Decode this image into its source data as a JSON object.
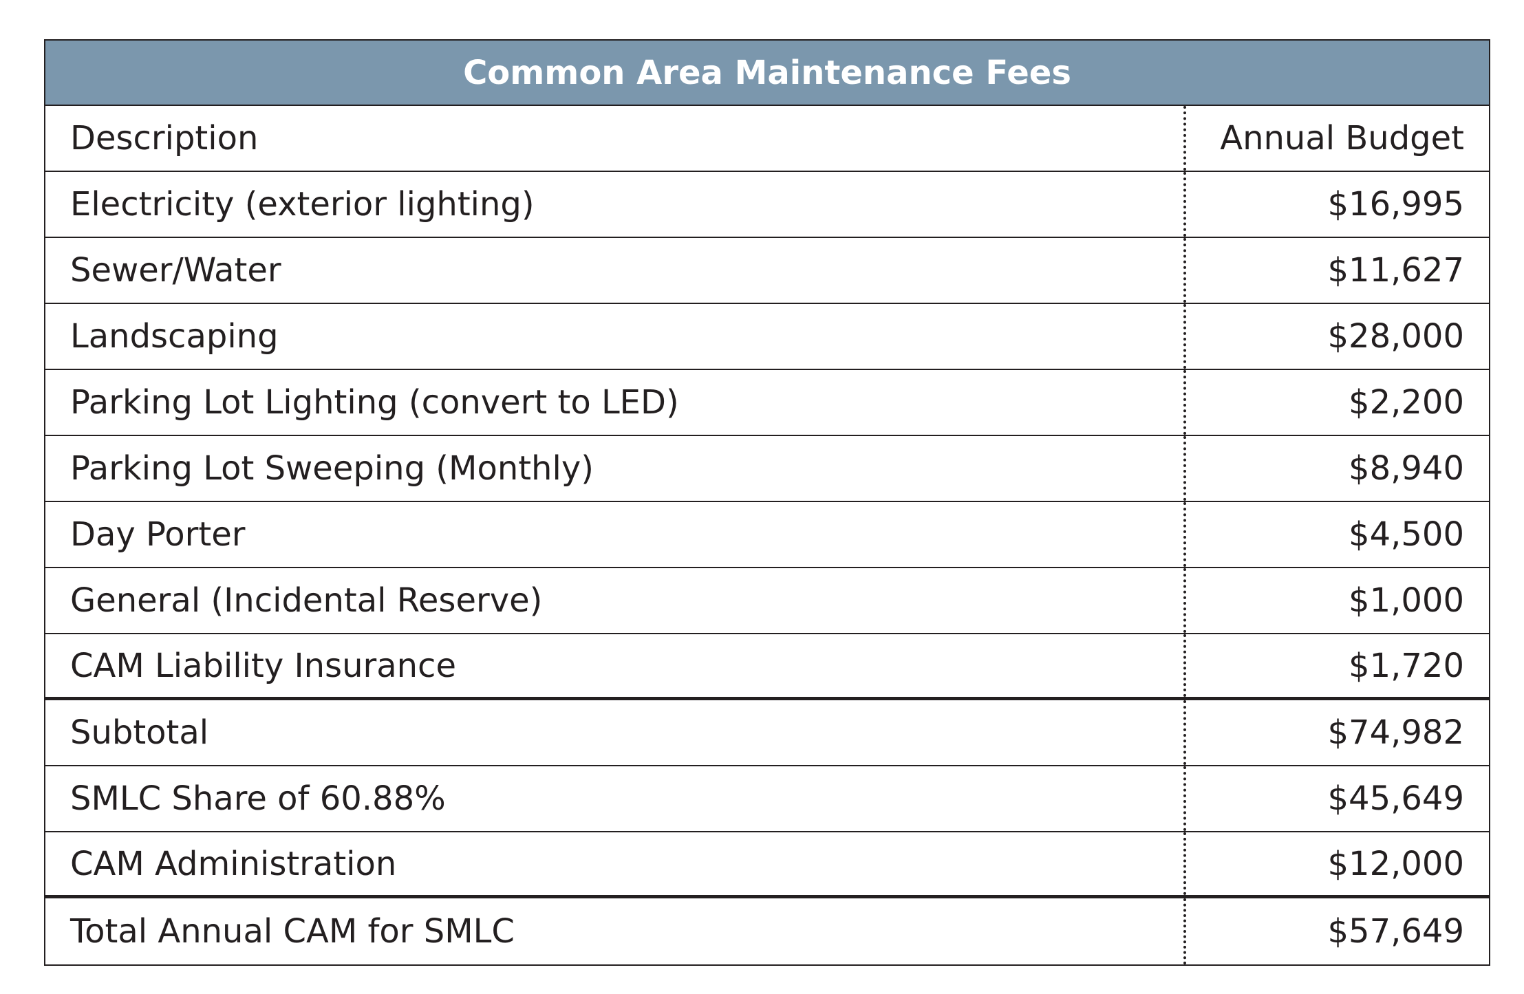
{
  "table": {
    "title": "Common Area Maintenance Fees",
    "header": {
      "description": "Description",
      "amount": "Annual Budget"
    },
    "rows": [
      {
        "description": "Electricity (exterior lighting)",
        "amount": "$16,995"
      },
      {
        "description": "Sewer/Water",
        "amount": "$11,627"
      },
      {
        "description": "Landscaping",
        "amount": "$28,000"
      },
      {
        "description": "Parking Lot Lighting (convert to LED)",
        "amount": "$2,200"
      },
      {
        "description": "Parking Lot Sweeping (Monthly)",
        "amount": "$8,940"
      },
      {
        "description": "Day Porter",
        "amount": "$4,500"
      },
      {
        "description": "General (Incidental Reserve)",
        "amount": "$1,000"
      },
      {
        "description": "CAM Liability Insurance",
        "amount": "$1,720"
      },
      {
        "description": "Subtotal",
        "amount": "$74,982"
      },
      {
        "description": "SMLC Share of 60.88%",
        "amount": "$45,649"
      },
      {
        "description": "CAM Administration",
        "amount": "$12,000"
      },
      {
        "description": "Total Annual CAM for SMLC",
        "amount": "$57,649"
      }
    ]
  },
  "colors": {
    "title_background": "#7b97ad",
    "title_text": "#ffffff",
    "border": "#231f20"
  }
}
